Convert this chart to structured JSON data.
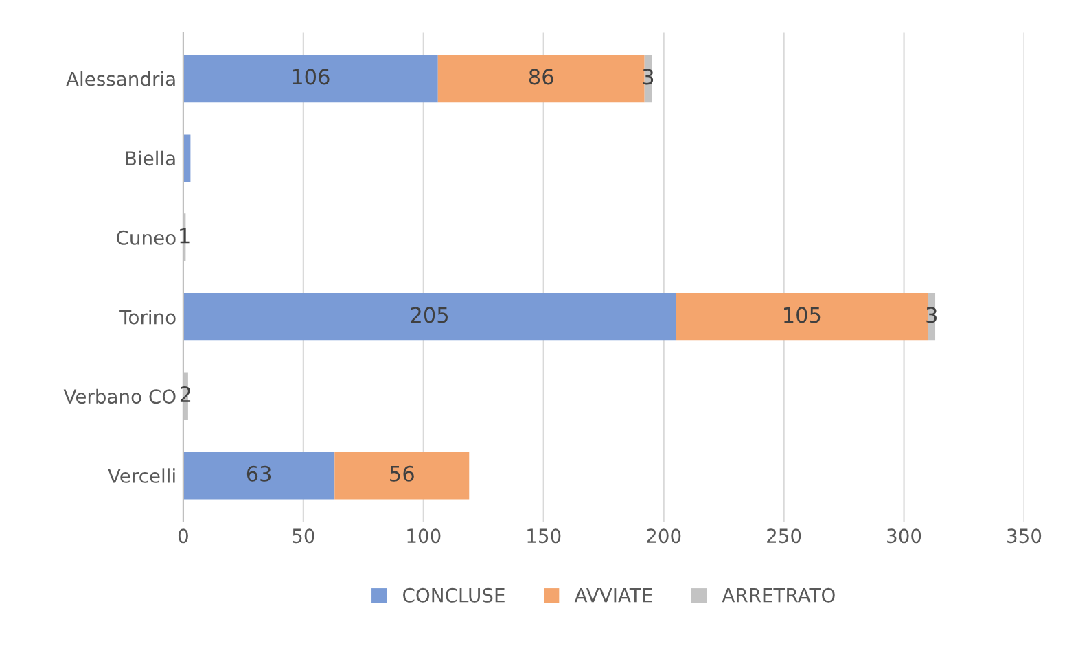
{
  "chart_data": {
    "type": "bar",
    "orientation": "horizontal",
    "stacked": true,
    "categories": [
      "Alessandria",
      "Biella",
      "Cuneo",
      "Torino",
      "Verbano CO",
      "Vercelli"
    ],
    "series": [
      {
        "name": "CONCLUSE",
        "color": "#7a9bd6",
        "values": [
          106,
          3,
          0,
          205,
          0,
          63
        ],
        "value_labels": [
          "106",
          null,
          null,
          "205",
          null,
          "63"
        ]
      },
      {
        "name": "AVVIATE",
        "color": "#f4a56d",
        "values": [
          86,
          0,
          0,
          105,
          0,
          56
        ],
        "value_labels": [
          "86",
          null,
          null,
          "105",
          null,
          "56"
        ]
      },
      {
        "name": "ARRETRATO",
        "color": "#c3c3c3",
        "values": [
          3,
          0,
          1,
          3,
          2,
          0
        ],
        "value_labels": [
          "3",
          null,
          "1",
          "3",
          "2",
          null
        ]
      }
    ],
    "xlim": [
      0,
      350
    ],
    "xticks": [
      0,
      50,
      100,
      150,
      200,
      250,
      300,
      350
    ],
    "grid": "x",
    "legend": "bottom"
  }
}
